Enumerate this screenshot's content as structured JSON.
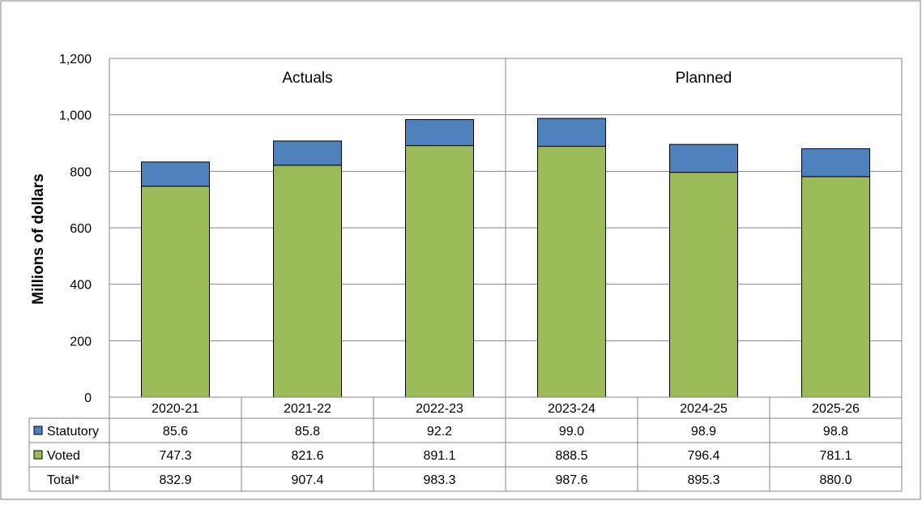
{
  "chart_data": {
    "type": "bar",
    "stacked": true,
    "ylabel": "Millions  of dollars",
    "ylim": [
      0,
      1200
    ],
    "yticks": [
      0,
      200,
      400,
      600,
      800,
      1000,
      1200
    ],
    "ytick_labels": [
      "0",
      "200",
      "400",
      "600",
      "800",
      "1,000",
      "1,200"
    ],
    "categories": [
      "2020-21",
      "2021-22",
      "2022-23",
      "2023-24",
      "2024-25",
      "2025-26"
    ],
    "groups": [
      {
        "label": "Actuals",
        "categories": [
          "2020-21",
          "2021-22",
          "2022-23"
        ]
      },
      {
        "label": "Planned",
        "categories": [
          "2023-24",
          "2024-25",
          "2025-26"
        ]
      }
    ],
    "series": [
      {
        "name": "Voted",
        "color": "#9BBB59",
        "values": [
          747.3,
          821.6,
          891.1,
          888.5,
          796.4,
          781.1
        ],
        "labels": [
          "747.3",
          "821.6",
          "891.1",
          "888.5",
          "796.4",
          "781.1"
        ]
      },
      {
        "name": "Statutory",
        "color": "#4F81BD",
        "values": [
          85.6,
          85.8,
          92.2,
          99.0,
          98.9,
          98.8
        ],
        "labels": [
          "85.6",
          "85.8",
          "92.2",
          "99.0",
          "98.9",
          "98.8"
        ]
      }
    ],
    "table_rows": [
      {
        "label": "Statutory",
        "series": "Statutory"
      },
      {
        "label": "Voted",
        "series": "Voted"
      },
      {
        "label": "Total*",
        "series": null,
        "values": [
          "832.9",
          "907.4",
          "983.3",
          "987.6",
          "895.3",
          "880.0"
        ]
      }
    ],
    "grid": true,
    "legend": "data-table"
  }
}
